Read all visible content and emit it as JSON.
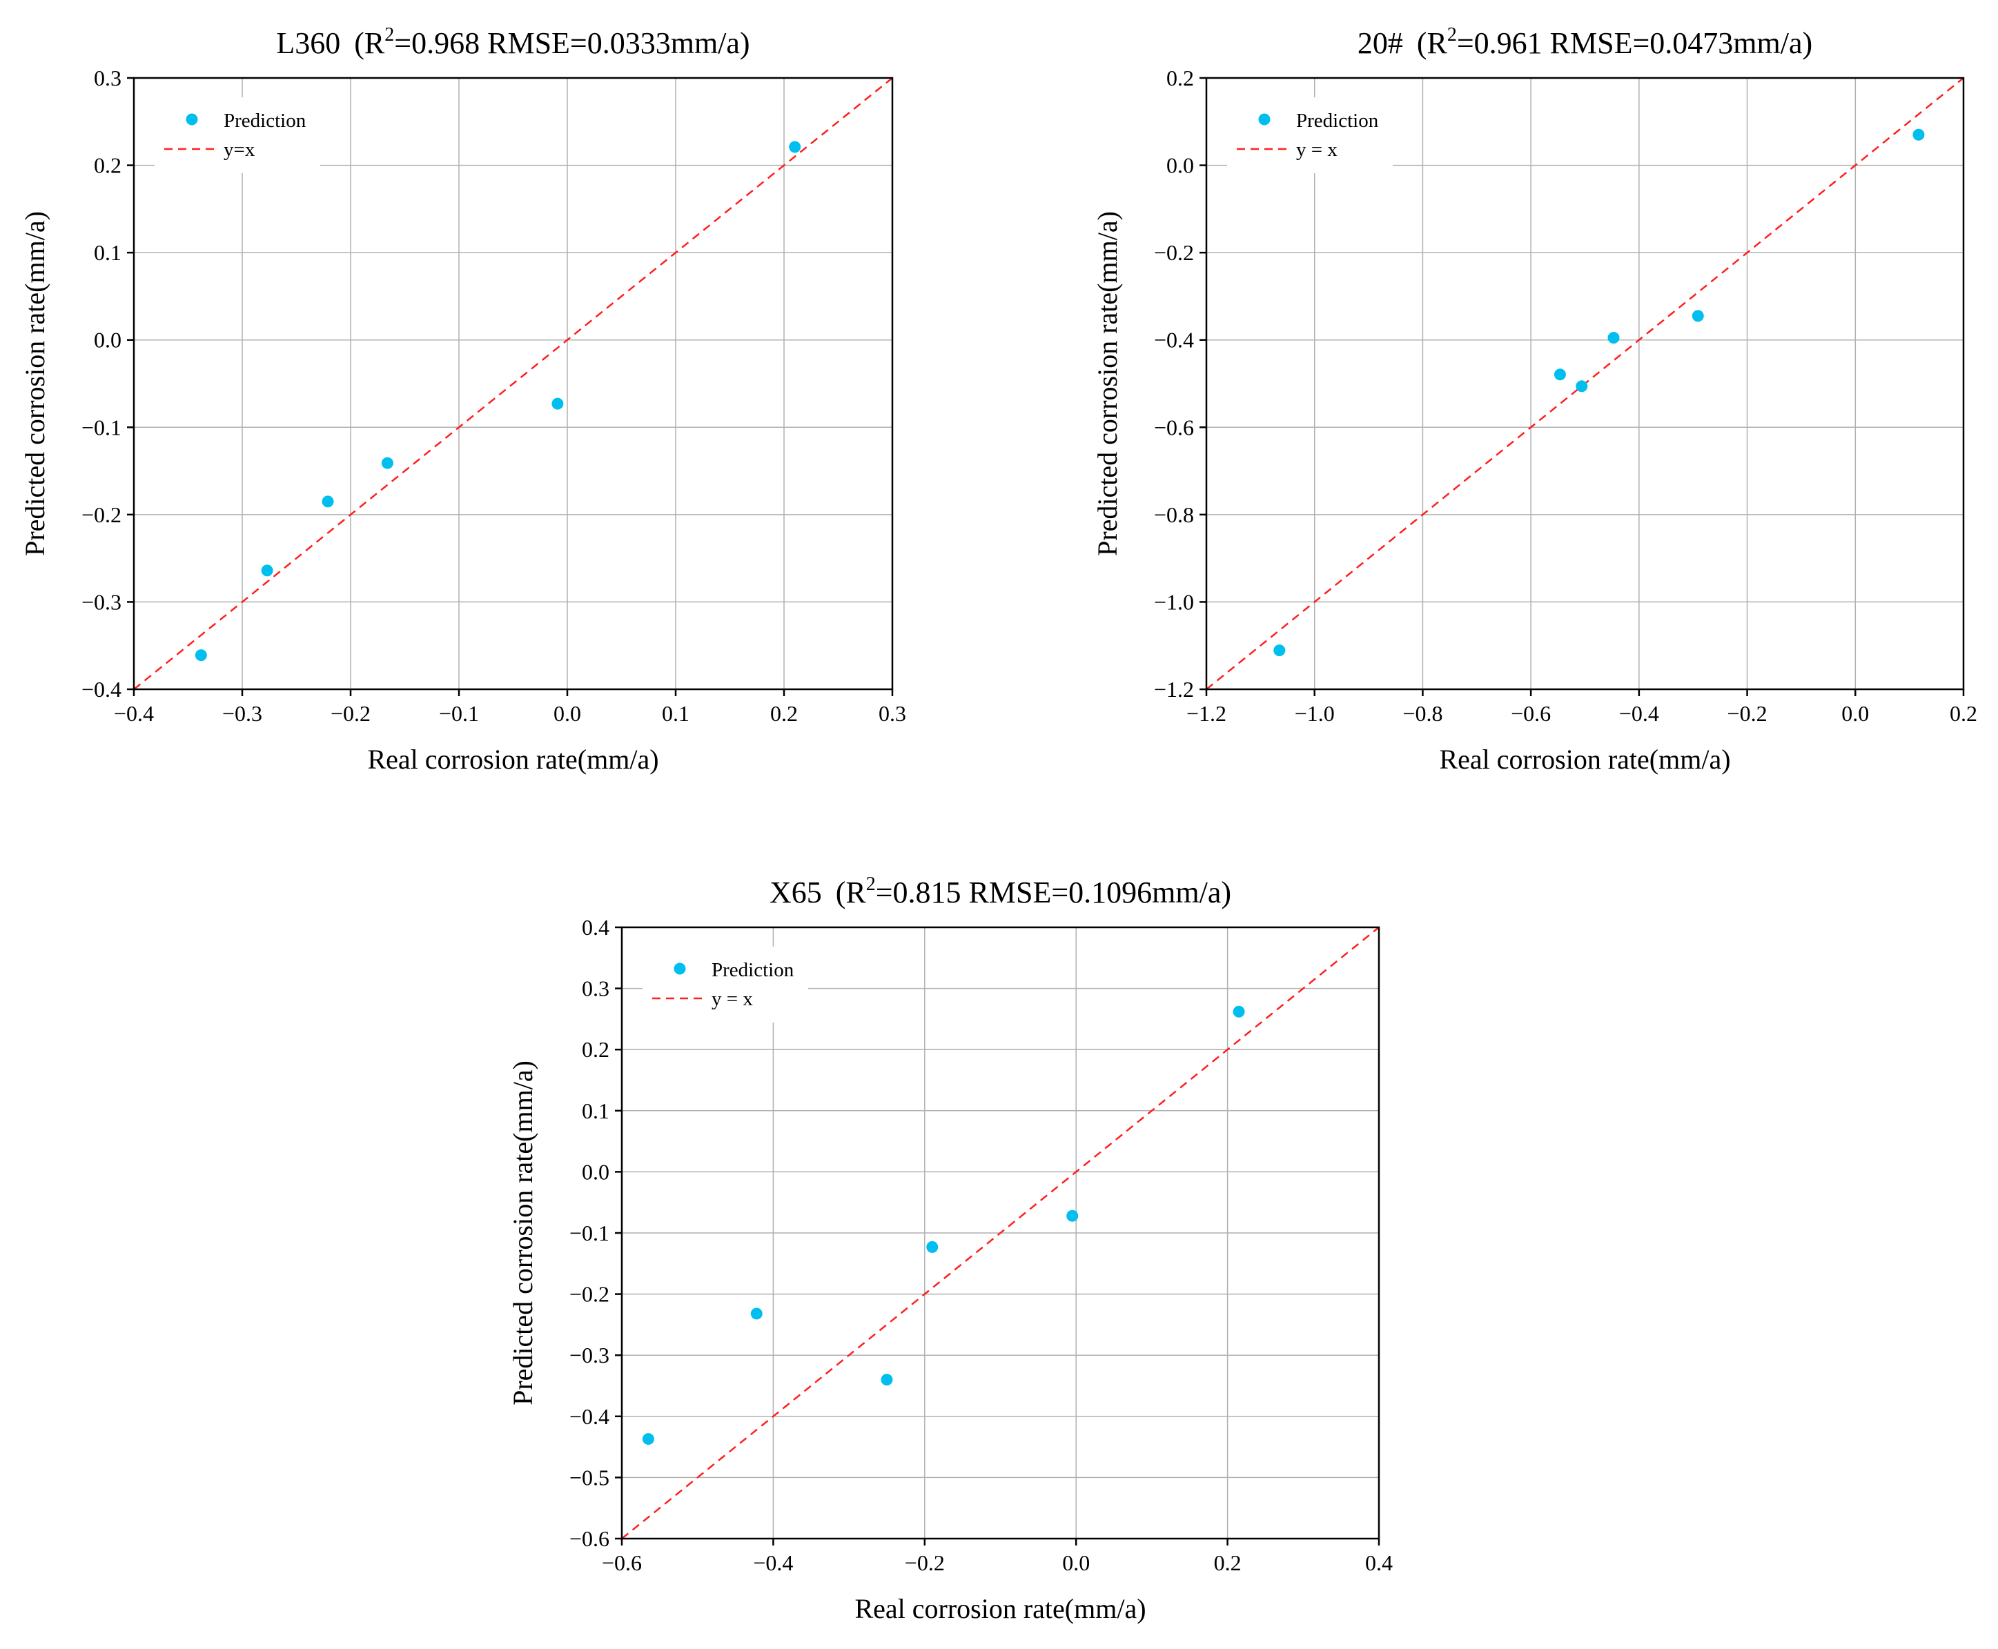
{
  "colors": {
    "prediction": "#00bfef",
    "reference_line": "#ff1f1f"
  },
  "chart_data": [
    {
      "type": "scatter",
      "title_main": "L360",
      "title_r2_prefix": "(R",
      "title_sup": "2",
      "title_rest": "=0.968 RMSE=0.0333mm/a)",
      "xlabel": "Real corrosion rate(mm/a)",
      "ylabel": "Predicted corrosion rate(mm/a)",
      "xlim": [
        -0.4,
        0.3
      ],
      "ylim": [
        -0.4,
        0.3
      ],
      "xticks": [
        -0.4,
        -0.3,
        -0.2,
        -0.1,
        0.0,
        0.1,
        0.2,
        0.3
      ],
      "yticks": [
        -0.4,
        -0.3,
        -0.2,
        -0.1,
        0.0,
        0.1,
        0.2,
        0.3
      ],
      "xtick_labels": [
        "−0.4",
        "−0.3",
        "−0.2",
        "−0.1",
        "0.0",
        "0.1",
        "0.2",
        "0.3"
      ],
      "ytick_labels": [
        "−0.4",
        "−0.3",
        "−0.2",
        "−0.1",
        "0.0",
        "0.1",
        "0.2",
        "0.3"
      ],
      "grid": true,
      "legend_position": "top-left",
      "series": [
        {
          "name": "Prediction",
          "kind": "points",
          "x": [
            -0.338,
            -0.277,
            -0.221,
            -0.166,
            -0.009,
            0.21
          ],
          "y": [
            -0.361,
            -0.264,
            -0.185,
            -0.141,
            -0.073,
            0.221
          ]
        },
        {
          "name": "y=x",
          "kind": "line",
          "x": [
            -0.4,
            0.3
          ],
          "y": [
            -0.4,
            0.3
          ]
        }
      ]
    },
    {
      "type": "scatter",
      "title_main": "20#",
      "title_r2_prefix": "(R",
      "title_sup": "2",
      "title_rest": "=0.961 RMSE=0.0473mm/a)",
      "xlabel": "Real corrosion rate(mm/a)",
      "ylabel": "Predicted corrosion rate(mm/a)",
      "xlim": [
        -1.2,
        0.2
      ],
      "ylim": [
        -1.2,
        0.2
      ],
      "xticks": [
        -1.2,
        -1.0,
        -0.8,
        -0.6,
        -0.4,
        -0.2,
        0.0,
        0.2
      ],
      "yticks": [
        -1.2,
        -1.0,
        -0.8,
        -0.6,
        -0.4,
        -0.2,
        0.0,
        0.2
      ],
      "xtick_labels": [
        "−1.2",
        "−1.0",
        "−0.8",
        "−0.6",
        "−0.4",
        "−0.2",
        "0.0",
        "0.2"
      ],
      "ytick_labels": [
        "−1.2",
        "−1.0",
        "−0.8",
        "−0.6",
        "−0.4",
        "−0.2",
        "0.0",
        "0.2"
      ],
      "grid": true,
      "legend_position": "top-left",
      "series": [
        {
          "name": "Prediction",
          "kind": "points",
          "x": [
            -1.065,
            -0.546,
            -0.506,
            -0.447,
            -0.291,
            0.117
          ],
          "y": [
            -1.111,
            -0.479,
            -0.506,
            -0.395,
            -0.345,
            0.07
          ]
        },
        {
          "name": "y = x",
          "kind": "line",
          "x": [
            -1.2,
            0.2
          ],
          "y": [
            -1.2,
            0.2
          ]
        }
      ]
    },
    {
      "type": "scatter",
      "title_main": "X65",
      "title_r2_prefix": "(R",
      "title_sup": "2",
      "title_rest": "=0.815 RMSE=0.1096mm/a)",
      "xlabel": "Real corrosion rate(mm/a)",
      "ylabel": "Predicted corrosion rate(mm/a)",
      "xlim": [
        -0.6,
        0.4
      ],
      "ylim": [
        -0.6,
        0.4
      ],
      "xticks": [
        -0.6,
        -0.4,
        -0.2,
        0.0,
        0.2,
        0.4
      ],
      "yticks": [
        -0.6,
        -0.5,
        -0.4,
        -0.3,
        -0.2,
        -0.1,
        0.0,
        0.1,
        0.2,
        0.3,
        0.4
      ],
      "xtick_labels": [
        "−0.6",
        "−0.4",
        "−0.2",
        "0.0",
        "0.2",
        "0.4"
      ],
      "ytick_labels": [
        "−0.6",
        "−0.5",
        "−0.4",
        "−0.3",
        "−0.2",
        "−0.1",
        "0.0",
        "0.1",
        "0.2",
        "0.3",
        "0.4"
      ],
      "grid": true,
      "legend_position": "top-left",
      "series": [
        {
          "name": "Prediction",
          "kind": "points",
          "x": [
            -0.565,
            -0.422,
            -0.25,
            -0.19,
            -0.005,
            0.215
          ],
          "y": [
            -0.437,
            -0.232,
            -0.34,
            -0.123,
            -0.072,
            0.262
          ]
        },
        {
          "name": "y = x",
          "kind": "line",
          "x": [
            -0.6,
            0.4
          ],
          "y": [
            -0.6,
            0.4
          ]
        }
      ]
    }
  ]
}
